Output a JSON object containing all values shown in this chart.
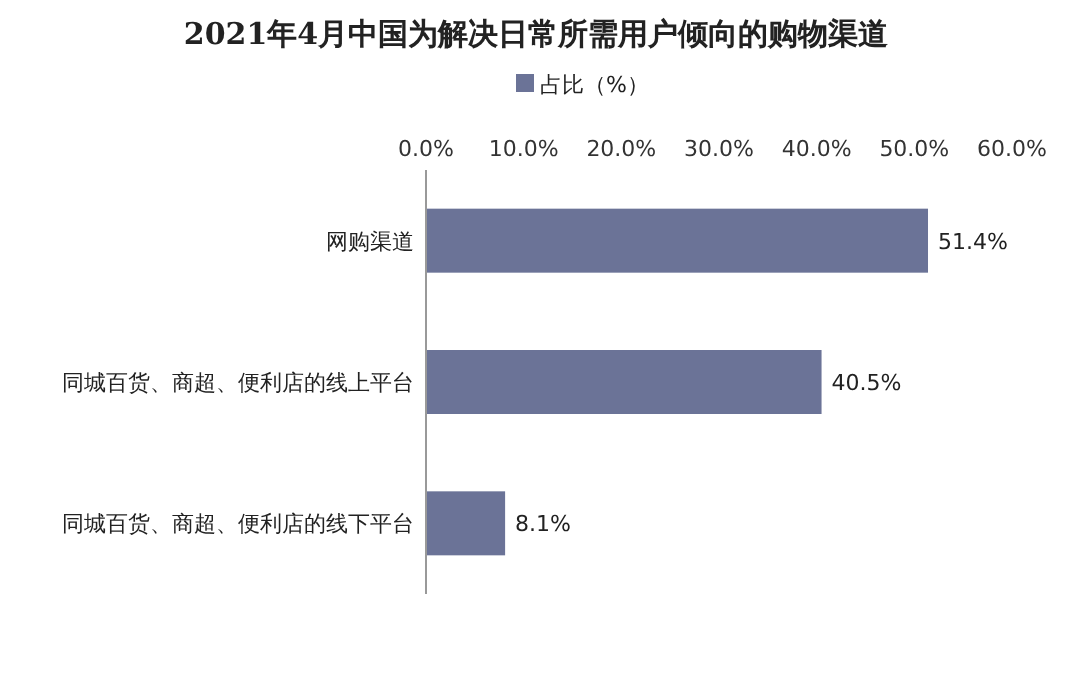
{
  "chart_data": {
    "type": "bar",
    "orientation": "horizontal",
    "title": "2021年4月中国为解决日常所需用户倾向的购物渠道",
    "categories": [
      "网购渠道",
      "同城百货、商超、便利店的线上平台",
      "同城百货、商超、便利店的线下平台"
    ],
    "series": [
      {
        "name": "占比（%）",
        "color": "#6b7397",
        "values": [
          51.4,
          40.5,
          8.1
        ]
      }
    ],
    "value_labels": [
      "51.4%",
      "40.5%",
      "8.1%"
    ],
    "xlim": [
      0,
      60
    ],
    "xticks": [
      {
        "value": 0,
        "label": "0.0%"
      },
      {
        "value": 10,
        "label": "10.0%"
      },
      {
        "value": 20,
        "label": "20.0%"
      },
      {
        "value": 30,
        "label": "30.0%"
      },
      {
        "value": 40,
        "label": "40.0%"
      },
      {
        "value": 50,
        "label": "50.0%"
      },
      {
        "value": 60,
        "label": "60.0%"
      }
    ],
    "legend": "top"
  }
}
